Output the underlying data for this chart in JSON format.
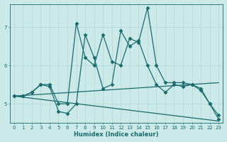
{
  "xlabel": "Humidex (Indice chaleur)",
  "xlim": [
    -0.5,
    23.5
  ],
  "ylim": [
    4.5,
    7.6
  ],
  "yticks": [
    5,
    6,
    7
  ],
  "xticks": [
    0,
    1,
    2,
    3,
    4,
    5,
    6,
    7,
    8,
    9,
    10,
    11,
    12,
    13,
    14,
    15,
    16,
    17,
    18,
    19,
    20,
    21,
    22,
    23
  ],
  "bg_color": "#cce9ea",
  "grid_color": "#b0d8da",
  "line_color": "#1a6b6b",
  "lines": [
    {
      "x": [
        0,
        1,
        2,
        3,
        4,
        5,
        6,
        7,
        8,
        9,
        10,
        11,
        12,
        13,
        14,
        15,
        16,
        17,
        18,
        19,
        20,
        21,
        22,
        23
      ],
      "y": [
        5.2,
        5.2,
        5.3,
        5.5,
        5.5,
        5.0,
        5.0,
        7.1,
        6.2,
        6.0,
        6.8,
        6.1,
        6.0,
        6.7,
        6.6,
        7.5,
        6.0,
        5.55,
        5.55,
        5.55,
        5.5,
        5.35,
        5.0,
        4.7
      ],
      "marker": "D",
      "markersize": 2.5,
      "linewidth": 0.9
    },
    {
      "x": [
        0,
        1,
        2,
        3,
        4,
        5,
        6,
        7,
        8,
        9,
        10,
        11,
        12,
        13,
        14,
        15,
        16,
        17,
        18,
        19,
        20,
        21,
        22,
        23
      ],
      "y": [
        5.2,
        5.2,
        5.3,
        5.5,
        5.45,
        4.8,
        4.75,
        5.0,
        6.8,
        6.2,
        5.4,
        5.5,
        6.9,
        6.5,
        6.65,
        6.0,
        5.5,
        5.3,
        5.5,
        5.45,
        5.5,
        5.4,
        5.0,
        4.6
      ],
      "marker": "D",
      "markersize": 2.5,
      "linewidth": 0.9
    },
    {
      "x": [
        0,
        23
      ],
      "y": [
        5.2,
        5.55
      ],
      "marker": null,
      "markersize": 0,
      "linewidth": 0.9
    },
    {
      "x": [
        0,
        23
      ],
      "y": [
        5.2,
        4.55
      ],
      "marker": null,
      "markersize": 0,
      "linewidth": 0.9
    }
  ]
}
